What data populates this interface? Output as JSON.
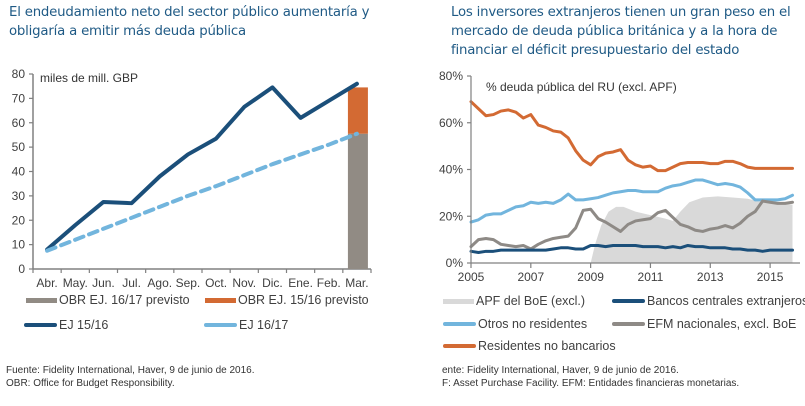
{
  "left": {
    "title": "El endeudamiento neto del sector público aumentaría y obligaría a emitir más deuda pública",
    "unit_label": "miles de mill. GBP",
    "legend": [
      {
        "label": "OBR EJ. 16/17 previsto",
        "color": "#918b84",
        "kind": "bar"
      },
      {
        "label": "OBR EJ. 15/16 previsto",
        "color": "#d36a33",
        "kind": "bar"
      },
      {
        "label": "EJ 15/16",
        "color": "#1b4f7a",
        "kind": "line"
      },
      {
        "label": "EJ 16/17",
        "color": "#72b5dd",
        "kind": "line"
      }
    ],
    "footnote": [
      "Fuente: Fidelity International, Haver, 9 de junio de 2016.",
      "OBR: Office for Budget Responsibility."
    ]
  },
  "right": {
    "title": "Los inversores extranjeros tienen un gran peso en el mercado de deuda pública británica y a la hora de financiar el déficit presupuestario del estado",
    "unit_label": "% deuda pública del RU (excl. APF)",
    "legend": [
      {
        "label": "APF del BoE (excl.)",
        "color": "#d9d9d9",
        "kind": "area"
      },
      {
        "label": "Bancos centrales extranjeros",
        "color": "#1b4f7a",
        "kind": "line"
      },
      {
        "label": "Otros no residentes",
        "color": "#72b5dd",
        "kind": "line"
      },
      {
        "label": "EFM nacionales, excl. BoE",
        "color": "#8e8a86",
        "kind": "line"
      },
      {
        "label": "Residentes no bancarios",
        "color": "#d36a33",
        "kind": "line"
      }
    ],
    "footnote": [
      "ente: Fidelity International, Haver, 9 de junio de 2016.",
      "F: Asset Purchase Facility. EFM: Entidades financieras monetarias."
    ]
  },
  "chart_data": [
    {
      "type": "line",
      "title": "El endeudamiento neto del sector público aumentaría y obligaría a emitir más deuda pública",
      "ylabel": "miles de mill. GBP",
      "xlabel": "",
      "categories": [
        "Abr.",
        "May.",
        "Jun.",
        "Jul.",
        "Ago.",
        "Sep.",
        "Oct.",
        "Nov.",
        "Dic.",
        "Ene.",
        "Feb.",
        "Mar."
      ],
      "ylim": [
        0,
        80
      ],
      "yticks": [
        0,
        10,
        20,
        30,
        40,
        50,
        60,
        70,
        80
      ],
      "grid": false,
      "series": [
        {
          "name": "EJ 15/16",
          "style": "solid",
          "color": "#1b4f7a",
          "values": [
            8,
            18,
            27.5,
            27,
            38,
            47,
            53.5,
            66.5,
            74.5,
            62,
            69,
            76
          ]
        },
        {
          "name": "EJ 16/17",
          "style": "dashed",
          "color": "#72b5dd",
          "values": [
            7.5,
            12,
            16.5,
            21,
            25.5,
            30,
            34,
            38.5,
            43,
            47,
            51,
            55.5
          ]
        }
      ],
      "bars": [
        {
          "name": "OBR EJ. 16/17 previsto",
          "category": "Mar.",
          "value": 55.5,
          "color": "#918b84"
        },
        {
          "name": "OBR EJ. 15/16 previsto",
          "category": "Mar.",
          "value": 19,
          "stacked_on": "OBR EJ. 16/17 previsto",
          "color": "#d36a33"
        }
      ]
    },
    {
      "type": "line",
      "title": "Los inversores extranjeros tienen un gran peso en el mercado de deuda pública británica",
      "ylabel": "% deuda pública del RU (excl. APF)",
      "xlabel": "",
      "xlim": [
        2005,
        2016
      ],
      "xticks": [
        "2005",
        "2007",
        "2009",
        "2011",
        "2013",
        "2015"
      ],
      "ylim": [
        0,
        80
      ],
      "yticks": [
        "0%",
        "20%",
        "40%",
        "60%",
        "80%"
      ],
      "grid": false,
      "x": [
        2005.0,
        2005.25,
        2005.5,
        2005.75,
        2006.0,
        2006.25,
        2006.5,
        2006.75,
        2007.0,
        2007.25,
        2007.5,
        2007.75,
        2008.0,
        2008.25,
        2008.5,
        2008.75,
        2009.0,
        2009.25,
        2009.5,
        2009.75,
        2010.0,
        2010.25,
        2010.5,
        2010.75,
        2011.0,
        2011.25,
        2011.5,
        2011.75,
        2012.0,
        2012.25,
        2012.5,
        2012.75,
        2013.0,
        2013.25,
        2013.5,
        2013.75,
        2014.0,
        2014.25,
        2014.5,
        2014.75,
        2015.0,
        2015.25,
        2015.5,
        2015.75
      ],
      "series": [
        {
          "name": "Residentes no bancarios",
          "color": "#d36a33",
          "values": [
            69,
            66,
            63,
            63.5,
            65,
            65.5,
            64.5,
            62,
            63.5,
            59,
            58,
            56.5,
            56,
            53.5,
            48,
            44,
            42,
            45.5,
            47,
            47.5,
            48.5,
            44,
            42,
            41,
            41.5,
            39.5,
            39.5,
            41,
            42.5,
            43,
            43,
            43,
            42.5,
            42.5,
            43.5,
            43.5,
            42.5,
            41,
            40.5,
            40.5,
            40.5,
            40.5,
            40.5,
            40.5
          ]
        },
        {
          "name": "Otros no residentes",
          "color": "#72b5dd",
          "values": [
            17.5,
            18.5,
            20.5,
            21,
            21,
            22.5,
            24,
            24.5,
            26,
            25.5,
            26,
            25.5,
            27,
            29.5,
            27,
            27,
            27.5,
            28,
            29,
            30,
            30.5,
            31,
            31,
            30.5,
            30.5,
            30.5,
            32,
            33,
            33.5,
            34.5,
            35.5,
            35.5,
            34.5,
            33.5,
            34,
            33.5,
            32.5,
            30,
            27,
            27,
            27,
            27,
            27.5,
            29
          ]
        },
        {
          "name": "EFM nacionales, excl. BoE",
          "color": "#8e8a86",
          "values": [
            7,
            10,
            10.5,
            10,
            8,
            7.5,
            7,
            7.5,
            6,
            8,
            9.5,
            10.5,
            11,
            11.5,
            15,
            22.5,
            23,
            19,
            17.5,
            15.5,
            13.5,
            16.5,
            18,
            18.5,
            19,
            21.5,
            22.5,
            19.5,
            16.5,
            15.5,
            14,
            13.5,
            14.5,
            15,
            16,
            15,
            17,
            20,
            22,
            26.5,
            26,
            25.5,
            25.5,
            26
          ]
        },
        {
          "name": "Bancos centrales extranjeros",
          "color": "#1b4f7a",
          "values": [
            5,
            4.5,
            5,
            5,
            5.5,
            5.5,
            5.5,
            5.5,
            5.5,
            5.5,
            5.5,
            6,
            6.5,
            6.5,
            6,
            6,
            7.5,
            7.5,
            7,
            7.5,
            7.5,
            7.5,
            7.5,
            7,
            7,
            7,
            6.5,
            7,
            6.5,
            7.5,
            7,
            7,
            6.5,
            6.5,
            6.5,
            6,
            6,
            5.5,
            5.5,
            5,
            5.5,
            5.5,
            5.5,
            5.5
          ]
        }
      ],
      "area": {
        "name": "APF del BoE (excl.)",
        "color": "#d9d9d9",
        "x": [
          2009.0,
          2009.15,
          2009.35,
          2009.6,
          2009.85,
          2010.1,
          2010.5,
          2011.0,
          2011.5,
          2011.75,
          2012.0,
          2012.3,
          2012.75,
          2013.25,
          2013.75,
          2014.25,
          2014.75,
          2015.25,
          2015.75
        ],
        "values": [
          0,
          8,
          16,
          22,
          24,
          24,
          22,
          20.5,
          19,
          18,
          22,
          26,
          28,
          28.5,
          28,
          27.5,
          26,
          25.5,
          25
        ]
      }
    }
  ]
}
